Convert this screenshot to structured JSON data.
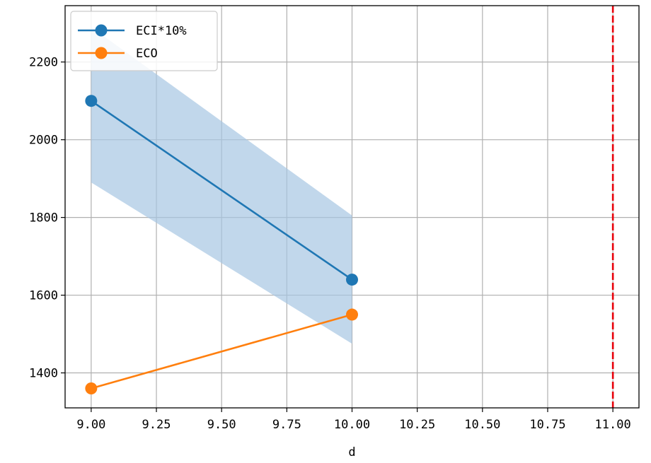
{
  "chart_data": {
    "type": "line",
    "title": "",
    "xlabel": "d",
    "ylabel": "",
    "xlim": [
      8.9,
      11.1
    ],
    "ylim": [
      1310,
      2345
    ],
    "xticks": [
      9.0,
      9.25,
      9.5,
      9.75,
      10.0,
      10.25,
      10.5,
      10.75,
      11.0
    ],
    "xtick_labels": [
      "9.00",
      "9.25",
      "9.50",
      "9.75",
      "10.00",
      "10.25",
      "10.50",
      "10.75",
      "11.00"
    ],
    "yticks": [
      1400,
      1600,
      1800,
      2000,
      2200
    ],
    "ytick_labels": [
      "1400",
      "1600",
      "1800",
      "2000",
      "2200"
    ],
    "grid": true,
    "legend_position": "top-left",
    "series": [
      {
        "name": "ECI*10%",
        "color": "#1f77b4",
        "x": [
          9.0,
          10.0
        ],
        "y": [
          2100,
          1640
        ],
        "band_upper": [
          2290,
          1805
        ],
        "band_lower": [
          1890,
          1475
        ],
        "band_color": "#a6c6e2"
      },
      {
        "name": "ECO",
        "color": "#ff7f0e",
        "x": [
          9.0,
          10.0
        ],
        "y": [
          1360,
          1550
        ]
      }
    ],
    "vlines": [
      {
        "x": 11.0,
        "color": "#e8000b",
        "style": "dashed"
      }
    ]
  }
}
